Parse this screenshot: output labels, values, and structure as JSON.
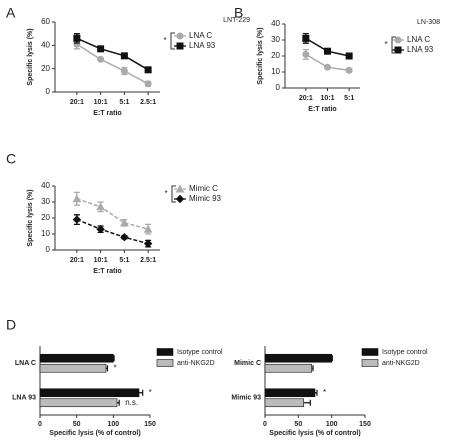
{
  "chart_data": [
    {
      "type": "line",
      "panel": "A",
      "title": "LNT-229",
      "x_label": "E:T ratio",
      "y_label": "Specific lysis (%)",
      "categories": [
        "20:1",
        "10:1",
        "5:1",
        "2.5:1"
      ],
      "ylim": [
        0,
        60
      ],
      "yticks": [
        0,
        20,
        40,
        60
      ],
      "annotation": "*",
      "series": [
        {
          "name": "LNA C",
          "color": "#aaaaaa",
          "marker": "circle",
          "values": [
            41,
            28,
            18,
            7
          ],
          "errors": [
            4,
            1,
            3,
            2
          ]
        },
        {
          "name": "LNA 93",
          "color": "#111111",
          "marker": "square",
          "values": [
            46,
            37,
            31,
            19
          ],
          "errors": [
            4,
            1,
            2,
            1
          ]
        }
      ]
    },
    {
      "type": "line",
      "panel": "B",
      "title": "LN-308",
      "x_label": "E:T ratio",
      "y_label": "Specific lysis (%)",
      "categories": [
        "20:1",
        "10:1",
        "5:1"
      ],
      "ylim": [
        0,
        40
      ],
      "yticks": [
        0,
        10,
        20,
        30,
        40
      ],
      "annotation": "*",
      "series": [
        {
          "name": "LNA C",
          "color": "#aaaaaa",
          "marker": "circle",
          "values": [
            21,
            13,
            11
          ],
          "errors": [
            3,
            1,
            1
          ]
        },
        {
          "name": "LNA 93",
          "color": "#111111",
          "marker": "square",
          "values": [
            31,
            23,
            20
          ],
          "errors": [
            3,
            1,
            1
          ]
        }
      ]
    },
    {
      "type": "line",
      "panel": "C",
      "x_label": "E:T ratio",
      "y_label": "Specific lysis (%)",
      "line_style": "dashed",
      "categories": [
        "20:1",
        "10:1",
        "5:1",
        "2.5:1"
      ],
      "ylim": [
        0,
        40
      ],
      "yticks": [
        0,
        10,
        20,
        30,
        40
      ],
      "annotation": "*",
      "series": [
        {
          "name": "Mimic C",
          "color": "#aaaaaa",
          "marker": "triangle",
          "values": [
            32,
            27,
            17,
            13
          ],
          "errors": [
            4,
            3,
            2,
            3
          ]
        },
        {
          "name": "Mimic 93",
          "color": "#111111",
          "marker": "diamond",
          "values": [
            19,
            13,
            8,
            4
          ],
          "errors": [
            3,
            2,
            1,
            2
          ]
        }
      ]
    },
    {
      "type": "hbar",
      "panel": "D",
      "x_label": "Specific lysis (% of control)",
      "categories": [
        "LNA C",
        "LNA 93"
      ],
      "xlim": [
        0,
        150
      ],
      "xticks": [
        0,
        50,
        100,
        150
      ],
      "series": [
        {
          "name": "Isotype control",
          "color": "#111111",
          "values": [
            100,
            135
          ],
          "errors": [
            1,
            5
          ],
          "significance": [
            null,
            "*"
          ]
        },
        {
          "name": "anti-NKG2D",
          "color": "#bbbbbb",
          "values": [
            90,
            105
          ],
          "errors": [
            2,
            3
          ],
          "significance": [
            "*",
            "n.s."
          ]
        }
      ]
    },
    {
      "type": "hbar",
      "x_label": "Specific lysis (% of control)",
      "categories": [
        "Mimic C",
        "Mimic 93"
      ],
      "xlim": [
        0,
        150
      ],
      "xticks": [
        0,
        50,
        100,
        150
      ],
      "series": [
        {
          "name": "Isotype control",
          "color": "#111111",
          "values": [
            100,
            75
          ],
          "errors": [
            1,
            3
          ],
          "significance": [
            null,
            "*"
          ]
        },
        {
          "name": "anti-NKG2D",
          "color": "#bbbbbb",
          "values": [
            70,
            58
          ],
          "errors": [
            2,
            10
          ],
          "significance": [
            null,
            null
          ]
        }
      ]
    }
  ]
}
